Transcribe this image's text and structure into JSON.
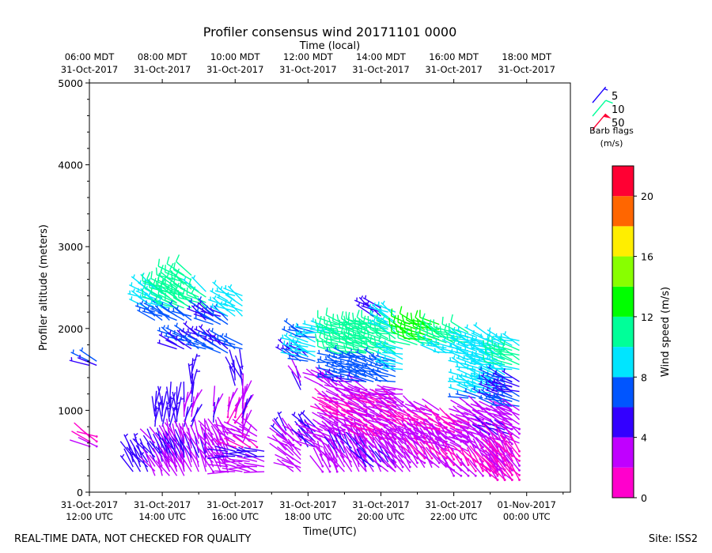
{
  "chart_data": {
    "type": "wind_barb_profile",
    "title": "Profiler consensus wind 20171101 0000",
    "top_axis_label": "Time (local)",
    "xlabel": "Time(UTC)",
    "ylabel": "Profiler altitude (meters)",
    "colorbar_label": "Wind speed (m/s)",
    "x_range_hours_utc": [
      12.0,
      25.2
    ],
    "ylim": [
      0,
      5000
    ],
    "y_ticks": [
      0,
      1000,
      2000,
      3000,
      4000,
      5000
    ],
    "y_tick_labels": [
      "0",
      "1000",
      "2000",
      "3000",
      "4000",
      "5000"
    ],
    "bottom_ticks": [
      {
        "hour": 12,
        "line1": "31-Oct-2017",
        "line2": "12:00 UTC"
      },
      {
        "hour": 14,
        "line1": "31-Oct-2017",
        "line2": "14:00 UTC"
      },
      {
        "hour": 16,
        "line1": "31-Oct-2017",
        "line2": "16:00 UTC"
      },
      {
        "hour": 18,
        "line1": "31-Oct-2017",
        "line2": "18:00 UTC"
      },
      {
        "hour": 20,
        "line1": "31-Oct-2017",
        "line2": "20:00 UTC"
      },
      {
        "hour": 22,
        "line1": "31-Oct-2017",
        "line2": "22:00 UTC"
      },
      {
        "hour": 24,
        "line1": "01-Nov-2017",
        "line2": "00:00 UTC"
      }
    ],
    "top_ticks": [
      {
        "hour": 12,
        "line1": "06:00 MDT",
        "line2": "31-Oct-2017"
      },
      {
        "hour": 14,
        "line1": "08:00 MDT",
        "line2": "31-Oct-2017"
      },
      {
        "hour": 16,
        "line1": "10:00 MDT",
        "line2": "31-Oct-2017"
      },
      {
        "hour": 18,
        "line1": "12:00 MDT",
        "line2": "31-Oct-2017"
      },
      {
        "hour": 20,
        "line1": "14:00 MDT",
        "line2": "31-Oct-2017"
      },
      {
        "hour": 22,
        "line1": "16:00 MDT",
        "line2": "31-Oct-2017"
      },
      {
        "hour": 24,
        "line1": "18:00 MDT",
        "line2": "31-Oct-2017"
      }
    ],
    "barb_legend": [
      {
        "label": "5",
        "speed": 5
      },
      {
        "label": "10",
        "speed": 10
      },
      {
        "label": "50",
        "speed": 50
      }
    ],
    "barb_legend_title_1": "Barb flags",
    "barb_legend_title_2": "(m/s)",
    "colorbar": {
      "range": [
        0,
        22
      ],
      "ticks": [
        0,
        4,
        8,
        12,
        16,
        20
      ],
      "tick_labels": [
        "0",
        "4",
        "8",
        "12",
        "16",
        "20"
      ],
      "bins": [
        {
          "from": 0,
          "to": 2,
          "color": "#ff00cc"
        },
        {
          "from": 2,
          "to": 4,
          "color": "#c000ff"
        },
        {
          "from": 4,
          "to": 6,
          "color": "#3300ff"
        },
        {
          "from": 6,
          "to": 8,
          "color": "#0055ff"
        },
        {
          "from": 8,
          "to": 10,
          "color": "#00e5ff"
        },
        {
          "from": 10,
          "to": 12,
          "color": "#00ff99"
        },
        {
          "from": 12,
          "to": 14,
          "color": "#00ff00"
        },
        {
          "from": 14,
          "to": 16,
          "color": "#88ff00"
        },
        {
          "from": 16,
          "to": 18,
          "color": "#ffee00"
        },
        {
          "from": 18,
          "to": 20,
          "color": "#ff6600"
        },
        {
          "from": 20,
          "to": 22,
          "color": "#ff0033"
        }
      ]
    },
    "barb_groups": [
      {
        "t0": 12.0,
        "t1": 12.2,
        "z0": 1550,
        "z1": 1600,
        "spd": 6,
        "dir": 300
      },
      {
        "t0": 12.0,
        "t1": 12.2,
        "z0": 560,
        "z1": 680,
        "spd": 1.5,
        "dir": 300
      },
      {
        "t0": 13.2,
        "t1": 13.6,
        "z0": 250,
        "z1": 480,
        "spd": 5,
        "dir": 330
      },
      {
        "t0": 13.6,
        "t1": 14.0,
        "z0": 2250,
        "z1": 2480,
        "spd": 9,
        "dir": 300
      },
      {
        "t0": 13.8,
        "t1": 14.2,
        "z0": 2100,
        "z1": 2200,
        "spd": 6.5,
        "dir": 300
      },
      {
        "t0": 13.8,
        "t1": 14.0,
        "z0": 800,
        "z1": 1050,
        "spd": 5,
        "dir": 0
      },
      {
        "t0": 13.8,
        "t1": 14.6,
        "z0": 200,
        "z1": 600,
        "spd": 4,
        "dir": 330
      },
      {
        "t0": 14.0,
        "t1": 14.4,
        "z0": 2250,
        "z1": 2500,
        "spd": 10,
        "dir": 300
      },
      {
        "t0": 14.2,
        "t1": 14.4,
        "z0": 800,
        "z1": 1100,
        "spd": 5,
        "dir": 0
      },
      {
        "t0": 14.4,
        "t1": 14.8,
        "z0": 2250,
        "z1": 2650,
        "spd": 11,
        "dir": 300
      },
      {
        "t0": 14.4,
        "t1": 14.8,
        "z0": 1750,
        "z1": 1900,
        "spd": 6.5,
        "dir": 300
      },
      {
        "t0": 14.4,
        "t1": 14.8,
        "z0": 2100,
        "z1": 2150,
        "spd": 6,
        "dir": 300
      },
      {
        "t0": 14.6,
        "t1": 14.8,
        "z0": 800,
        "z1": 1100,
        "spd": 4,
        "dir": 15
      },
      {
        "t0": 14.2,
        "t1": 15.2,
        "z0": 250,
        "z1": 650,
        "spd": 3.5,
        "dir": 340
      },
      {
        "t0": 14.8,
        "t1": 14.8,
        "z0": 1200,
        "z1": 1450,
        "spd": 5,
        "dir": 0
      },
      {
        "t0": 15.0,
        "t1": 15.2,
        "z0": 2250,
        "z1": 2450,
        "spd": 10,
        "dir": 300
      },
      {
        "t0": 15.0,
        "t1": 15.4,
        "z0": 1750,
        "z1": 1900,
        "spd": 6.5,
        "dir": 300
      },
      {
        "t0": 15.2,
        "t1": 15.4,
        "z0": 2100,
        "z1": 2200,
        "spd": 6,
        "dir": 300
      },
      {
        "t0": 15.4,
        "t1": 15.4,
        "z0": 850,
        "z1": 1050,
        "spd": 3.5,
        "dir": 20
      },
      {
        "t0": 15.4,
        "t1": 15.8,
        "z0": 2050,
        "z1": 2150,
        "spd": 6,
        "dir": 300
      },
      {
        "t0": 15.6,
        "t1": 15.8,
        "z0": 1700,
        "z1": 1850,
        "spd": 6.5,
        "dir": 300
      },
      {
        "t0": 15.4,
        "t1": 15.8,
        "z0": 250,
        "z1": 700,
        "spd": 3,
        "dir": 330
      },
      {
        "t0": 15.8,
        "t1": 16.2,
        "z0": 2150,
        "z1": 2400,
        "spd": 9,
        "dir": 300
      },
      {
        "t0": 16.0,
        "t1": 16.2,
        "z0": 1300,
        "z1": 1500,
        "spd": 5,
        "dir": 340
      },
      {
        "t0": 15.8,
        "t1": 16.2,
        "z0": 850,
        "z1": 1050,
        "spd": 2,
        "dir": 20
      },
      {
        "t0": 16.0,
        "t1": 16.2,
        "z0": 1750,
        "z1": 1800,
        "spd": 6.5,
        "dir": 300
      },
      {
        "t0": 16.2,
        "t1": 16.2,
        "z0": 600,
        "z1": 1200,
        "spd": 3.5,
        "dir": 10
      },
      {
        "t0": 15.8,
        "t1": 16.8,
        "z0": 250,
        "z1": 500,
        "spd": 3.5,
        "dir": 280
      },
      {
        "t0": 16.0,
        "t1": 16.6,
        "z0": 550,
        "z1": 750,
        "spd": 2.5,
        "dir": 300
      },
      {
        "t0": 17.4,
        "t1": 17.4,
        "z0": 650,
        "z1": 750,
        "spd": 5,
        "dir": 320
      },
      {
        "t0": 17.4,
        "t1": 17.8,
        "z0": 450,
        "z1": 700,
        "spd": 3,
        "dir": 310
      },
      {
        "t0": 17.6,
        "t1": 18.0,
        "z0": 1650,
        "z1": 1700,
        "spd": 6.5,
        "dir": 300
      },
      {
        "t0": 17.8,
        "t1": 17.8,
        "z0": 1250,
        "z1": 1400,
        "spd": 3.5,
        "dir": 330
      },
      {
        "t0": 17.6,
        "t1": 17.8,
        "z0": 250,
        "z1": 400,
        "spd": 3.5,
        "dir": 300
      },
      {
        "t0": 18.0,
        "t1": 18.2,
        "z0": 550,
        "z1": 800,
        "spd": 5,
        "dir": 320
      },
      {
        "t0": 17.8,
        "t1": 18.2,
        "z0": 1600,
        "z1": 1950,
        "spd": 8,
        "dir": 290
      },
      {
        "t0": 18.2,
        "t1": 18.8,
        "z0": 1950,
        "z1": 2000,
        "spd": 9,
        "dir": 280
      },
      {
        "t0": 18.2,
        "t1": 18.8,
        "z0": 550,
        "z1": 750,
        "spd": 3.5,
        "dir": 300
      },
      {
        "t0": 18.4,
        "t1": 18.8,
        "z0": 250,
        "z1": 450,
        "spd": 3,
        "dir": 330
      },
      {
        "t0": 18.4,
        "t1": 18.8,
        "z0": 1300,
        "z1": 1400,
        "spd": 2,
        "dir": 300
      },
      {
        "t0": 18.6,
        "t1": 18.8,
        "z0": 850,
        "z1": 1100,
        "spd": 2,
        "dir": 300
      },
      {
        "t0": 18.8,
        "t1": 19.6,
        "z0": 1700,
        "z1": 2050,
        "spd": 11,
        "dir": 285
      },
      {
        "t0": 18.8,
        "t1": 19.6,
        "z0": 1350,
        "z1": 1650,
        "spd": 6.5,
        "dir": 285
      },
      {
        "t0": 18.8,
        "t1": 19.6,
        "z0": 700,
        "z1": 1250,
        "spd": 2,
        "dir": 300
      },
      {
        "t0": 18.8,
        "t1": 19.6,
        "z0": 250,
        "z1": 650,
        "spd": 3.5,
        "dir": 330
      },
      {
        "t0": 19.6,
        "t1": 20.4,
        "z0": 1700,
        "z1": 2050,
        "spd": 11,
        "dir": 290
      },
      {
        "t0": 19.6,
        "t1": 20.4,
        "z0": 1350,
        "z1": 1600,
        "spd": 6.5,
        "dir": 290
      },
      {
        "t0": 19.6,
        "t1": 20.4,
        "z0": 1150,
        "z1": 1200,
        "spd": 3.5,
        "dir": 280
      },
      {
        "t0": 19.6,
        "t1": 20.4,
        "z0": 650,
        "z1": 1100,
        "spd": 2,
        "dir": 300
      },
      {
        "t0": 19.6,
        "t1": 20.4,
        "z0": 250,
        "z1": 600,
        "spd": 3.5,
        "dir": 320
      },
      {
        "t0": 19.8,
        "t1": 20.0,
        "z0": 2150,
        "z1": 2250,
        "spd": 5,
        "dir": 300
      },
      {
        "t0": 20.2,
        "t1": 20.4,
        "z0": 1950,
        "z1": 2200,
        "spd": 9,
        "dir": 300
      },
      {
        "t0": 20.4,
        "t1": 20.6,
        "z0": 1500,
        "z1": 1750,
        "spd": 9,
        "dir": 290
      },
      {
        "t0": 20.4,
        "t1": 20.6,
        "z0": 1200,
        "z1": 1250,
        "spd": 3,
        "dir": 280
      },
      {
        "t0": 20.4,
        "t1": 20.6,
        "z0": 700,
        "z1": 1100,
        "spd": 2,
        "dir": 300
      },
      {
        "t0": 20.4,
        "t1": 20.8,
        "z0": 250,
        "z1": 650,
        "spd": 3,
        "dir": 320
      },
      {
        "t0": 20.8,
        "t1": 21.6,
        "z0": 1800,
        "z1": 2050,
        "spd": 12,
        "dir": 290
      },
      {
        "t0": 20.8,
        "t1": 21.6,
        "z0": 600,
        "z1": 1000,
        "spd": 2,
        "dir": 300
      },
      {
        "t0": 21.0,
        "t1": 21.8,
        "z0": 300,
        "z1": 700,
        "spd": 2.5,
        "dir": 320
      },
      {
        "t0": 21.6,
        "t1": 22.4,
        "z0": 1700,
        "z1": 1950,
        "spd": 10,
        "dir": 290
      },
      {
        "t0": 21.8,
        "t1": 22.4,
        "z0": 500,
        "z1": 850,
        "spd": 2,
        "dir": 300
      },
      {
        "t0": 22.0,
        "t1": 22.4,
        "z0": 200,
        "z1": 400,
        "spd": 2,
        "dir": 320
      },
      {
        "t0": 22.4,
        "t1": 23.0,
        "z0": 1500,
        "z1": 1900,
        "spd": 9,
        "dir": 290
      },
      {
        "t0": 22.4,
        "t1": 23.0,
        "z0": 1150,
        "z1": 1400,
        "spd": 8,
        "dir": 290
      },
      {
        "t0": 22.4,
        "t1": 23.0,
        "z0": 600,
        "z1": 1000,
        "spd": 3,
        "dir": 300
      },
      {
        "t0": 22.6,
        "t1": 23.2,
        "z0": 200,
        "z1": 550,
        "spd": 2,
        "dir": 320
      },
      {
        "t0": 23.0,
        "t1": 23.4,
        "z0": 1250,
        "z1": 1800,
        "spd": 9,
        "dir": 290
      },
      {
        "t0": 23.0,
        "t1": 23.6,
        "z0": 700,
        "z1": 1000,
        "spd": 3.5,
        "dir": 300
      },
      {
        "t0": 23.2,
        "t1": 23.6,
        "z0": 1050,
        "z1": 1400,
        "spd": 6,
        "dir": 290
      },
      {
        "t0": 23.2,
        "t1": 23.6,
        "z0": 150,
        "z1": 650,
        "spd": 2.5,
        "dir": 320
      },
      {
        "t0": 23.4,
        "t1": 23.8,
        "z0": 1500,
        "z1": 1850,
        "spd": 10,
        "dir": 290
      },
      {
        "t0": 23.6,
        "t1": 23.8,
        "z0": 1050,
        "z1": 1350,
        "spd": 6,
        "dir": 290
      },
      {
        "t0": 23.6,
        "t1": 23.8,
        "z0": 600,
        "z1": 1000,
        "spd": 3,
        "dir": 300
      },
      {
        "t0": 23.2,
        "t1": 23.8,
        "z0": 150,
        "z1": 500,
        "spd": 1.5,
        "dir": 320
      }
    ]
  },
  "footer": {
    "left": "REAL-TIME DATA, NOT CHECKED FOR QUALITY",
    "right": "Site: ISS2"
  }
}
